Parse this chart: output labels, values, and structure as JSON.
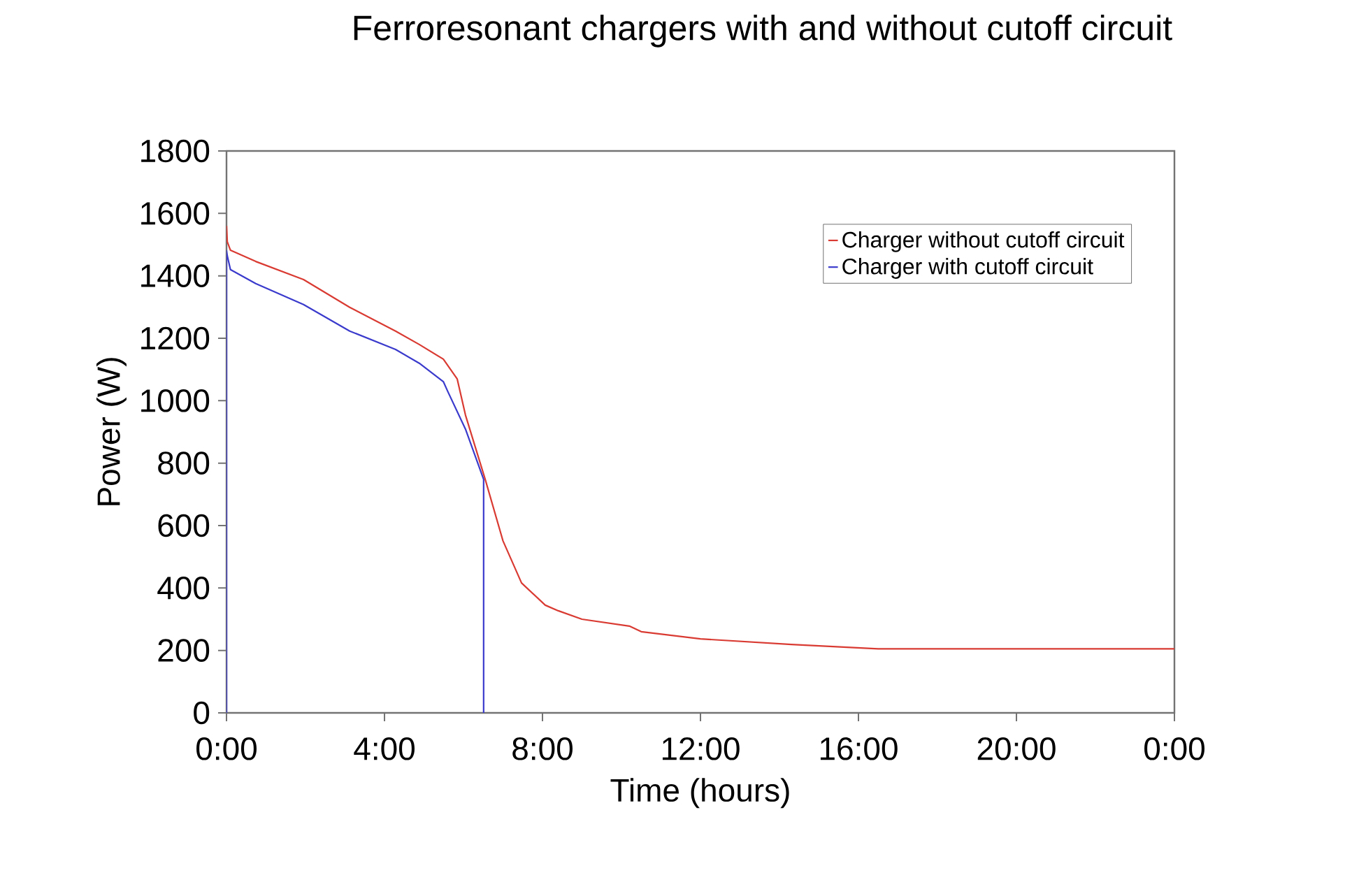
{
  "chart_data": {
    "type": "line",
    "title": "Ferroresonant chargers with and without cutoff circuit",
    "xlabel": "Time (hours)",
    "ylabel": "Power (W)",
    "xlim": [
      0,
      24
    ],
    "ylim": [
      0,
      1800
    ],
    "xticks": [
      {
        "value": 0,
        "label": "0:00"
      },
      {
        "value": 4,
        "label": "4:00"
      },
      {
        "value": 8,
        "label": "8:00"
      },
      {
        "value": 12,
        "label": "12:00"
      },
      {
        "value": 16,
        "label": "16:00"
      },
      {
        "value": 20,
        "label": "20:00"
      },
      {
        "value": 24,
        "label": "0:00"
      }
    ],
    "yticks": [
      0,
      200,
      400,
      600,
      800,
      1000,
      1200,
      1400,
      1600,
      1800
    ],
    "grid": false,
    "legend": "top right",
    "marker": "none",
    "series": [
      {
        "name": "Charger without cutoff circuit",
        "color": "#d93a32",
        "x": [
          0,
          0.02,
          0.1,
          0.74,
          1.95,
          3.12,
          4.28,
          4.88,
          5.49,
          5.84,
          6.05,
          6.55,
          7.0,
          7.47,
          8.07,
          8.4,
          9.0,
          10.2,
          10.5,
          12.0,
          14.3,
          16.5,
          20,
          24
        ],
        "values": [
          1560,
          1509,
          1482,
          1446,
          1388,
          1299,
          1223,
          1180,
          1133,
          1070,
          954,
          748,
          551,
          416,
          345,
          327,
          300,
          278,
          260,
          237,
          219,
          205,
          205,
          205
        ]
      },
      {
        "name": "Charger with cutoff circuit",
        "color": "#3a3acc",
        "x": [
          0,
          0,
          0.02,
          0.1,
          0.74,
          1.95,
          3.12,
          4.28,
          4.88,
          5.49,
          5.6,
          6.05,
          6.51,
          6.51
        ],
        "values": [
          0,
          1480,
          1464,
          1420,
          1375,
          1308,
          1223,
          1164,
          1120,
          1061,
          1030,
          909,
          748,
          0
        ]
      }
    ]
  }
}
